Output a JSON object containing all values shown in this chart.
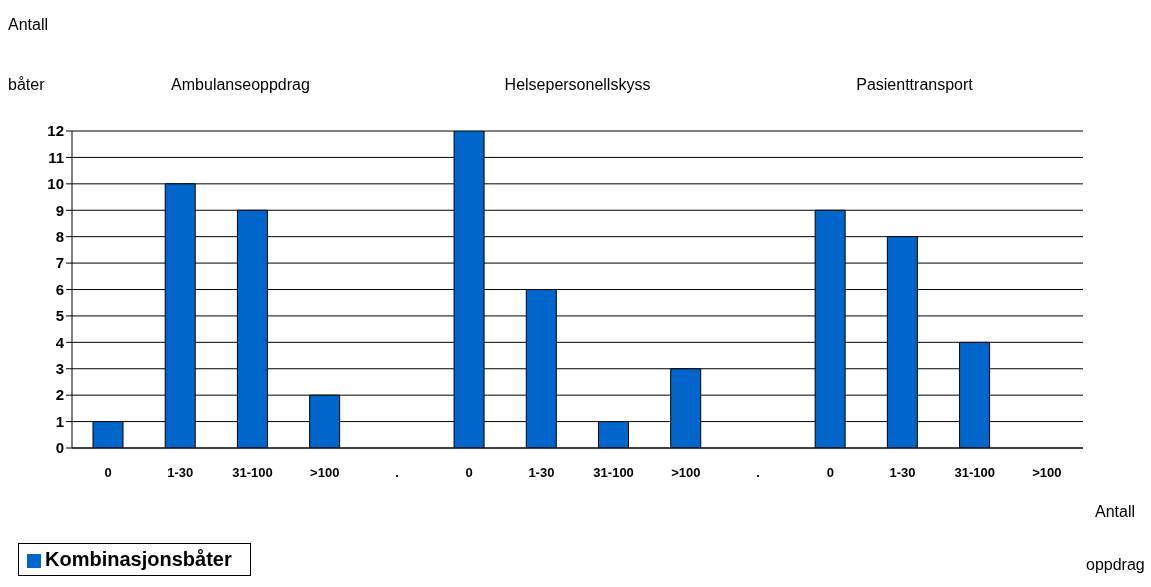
{
  "chart_data": {
    "type": "bar",
    "xlabel": "Antall oppdrag",
    "ylabel": "Antall båter",
    "annotations": [
      "Ambulanseoppdrag",
      "Helsepersonellskyss",
      "Pasienttransport"
    ],
    "categories": [
      "0",
      "1-30",
      "31-100",
      ">100",
      ".",
      "0",
      "1-30",
      "31-100",
      ">100",
      ".",
      "0",
      "1-30",
      "31-100",
      ">100"
    ],
    "series": [
      {
        "name": "Kombinasjonsbåter",
        "color": "#0066cc",
        "values": [
          1,
          10,
          9,
          2,
          null,
          12,
          6,
          1,
          3,
          null,
          9,
          8,
          4,
          0
        ]
      }
    ],
    "ylim": [
      0,
      12
    ],
    "yticks": [
      0,
      1,
      2,
      3,
      4,
      5,
      6,
      7,
      8,
      9,
      10,
      11,
      12
    ],
    "grid": "y",
    "legend": "bottom left"
  }
}
